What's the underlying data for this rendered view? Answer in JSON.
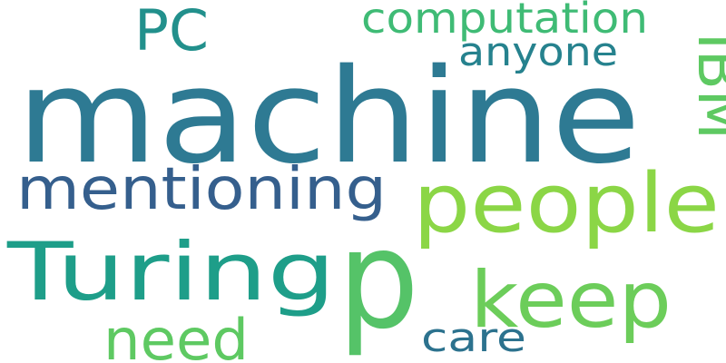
{
  "words": [
    {
      "id": "machine",
      "text": "machine",
      "color": "#2e7a93"
    },
    {
      "id": "p",
      "text": "p",
      "color": "#55c368"
    },
    {
      "id": "people",
      "text": "people",
      "color": "#8bd646"
    },
    {
      "id": "turing",
      "text": "Turing",
      "color": "#1e9e89"
    },
    {
      "id": "mentioning",
      "text": "mentioning",
      "color": "#355f8d"
    },
    {
      "id": "keep",
      "text": "keep",
      "color": "#6ccd5a"
    },
    {
      "id": "computation",
      "text": "computation",
      "color": "#3fbb75"
    },
    {
      "id": "pc",
      "text": "PC",
      "color": "#22908c"
    },
    {
      "id": "anyone",
      "text": "anyone",
      "color": "#26828e"
    },
    {
      "id": "ibm",
      "text": "IBM",
      "color": "#5ec962"
    },
    {
      "id": "need",
      "text": "need",
      "color": "#5ec962"
    },
    {
      "id": "care",
      "text": "care",
      "color": "#2c728e"
    }
  ]
}
